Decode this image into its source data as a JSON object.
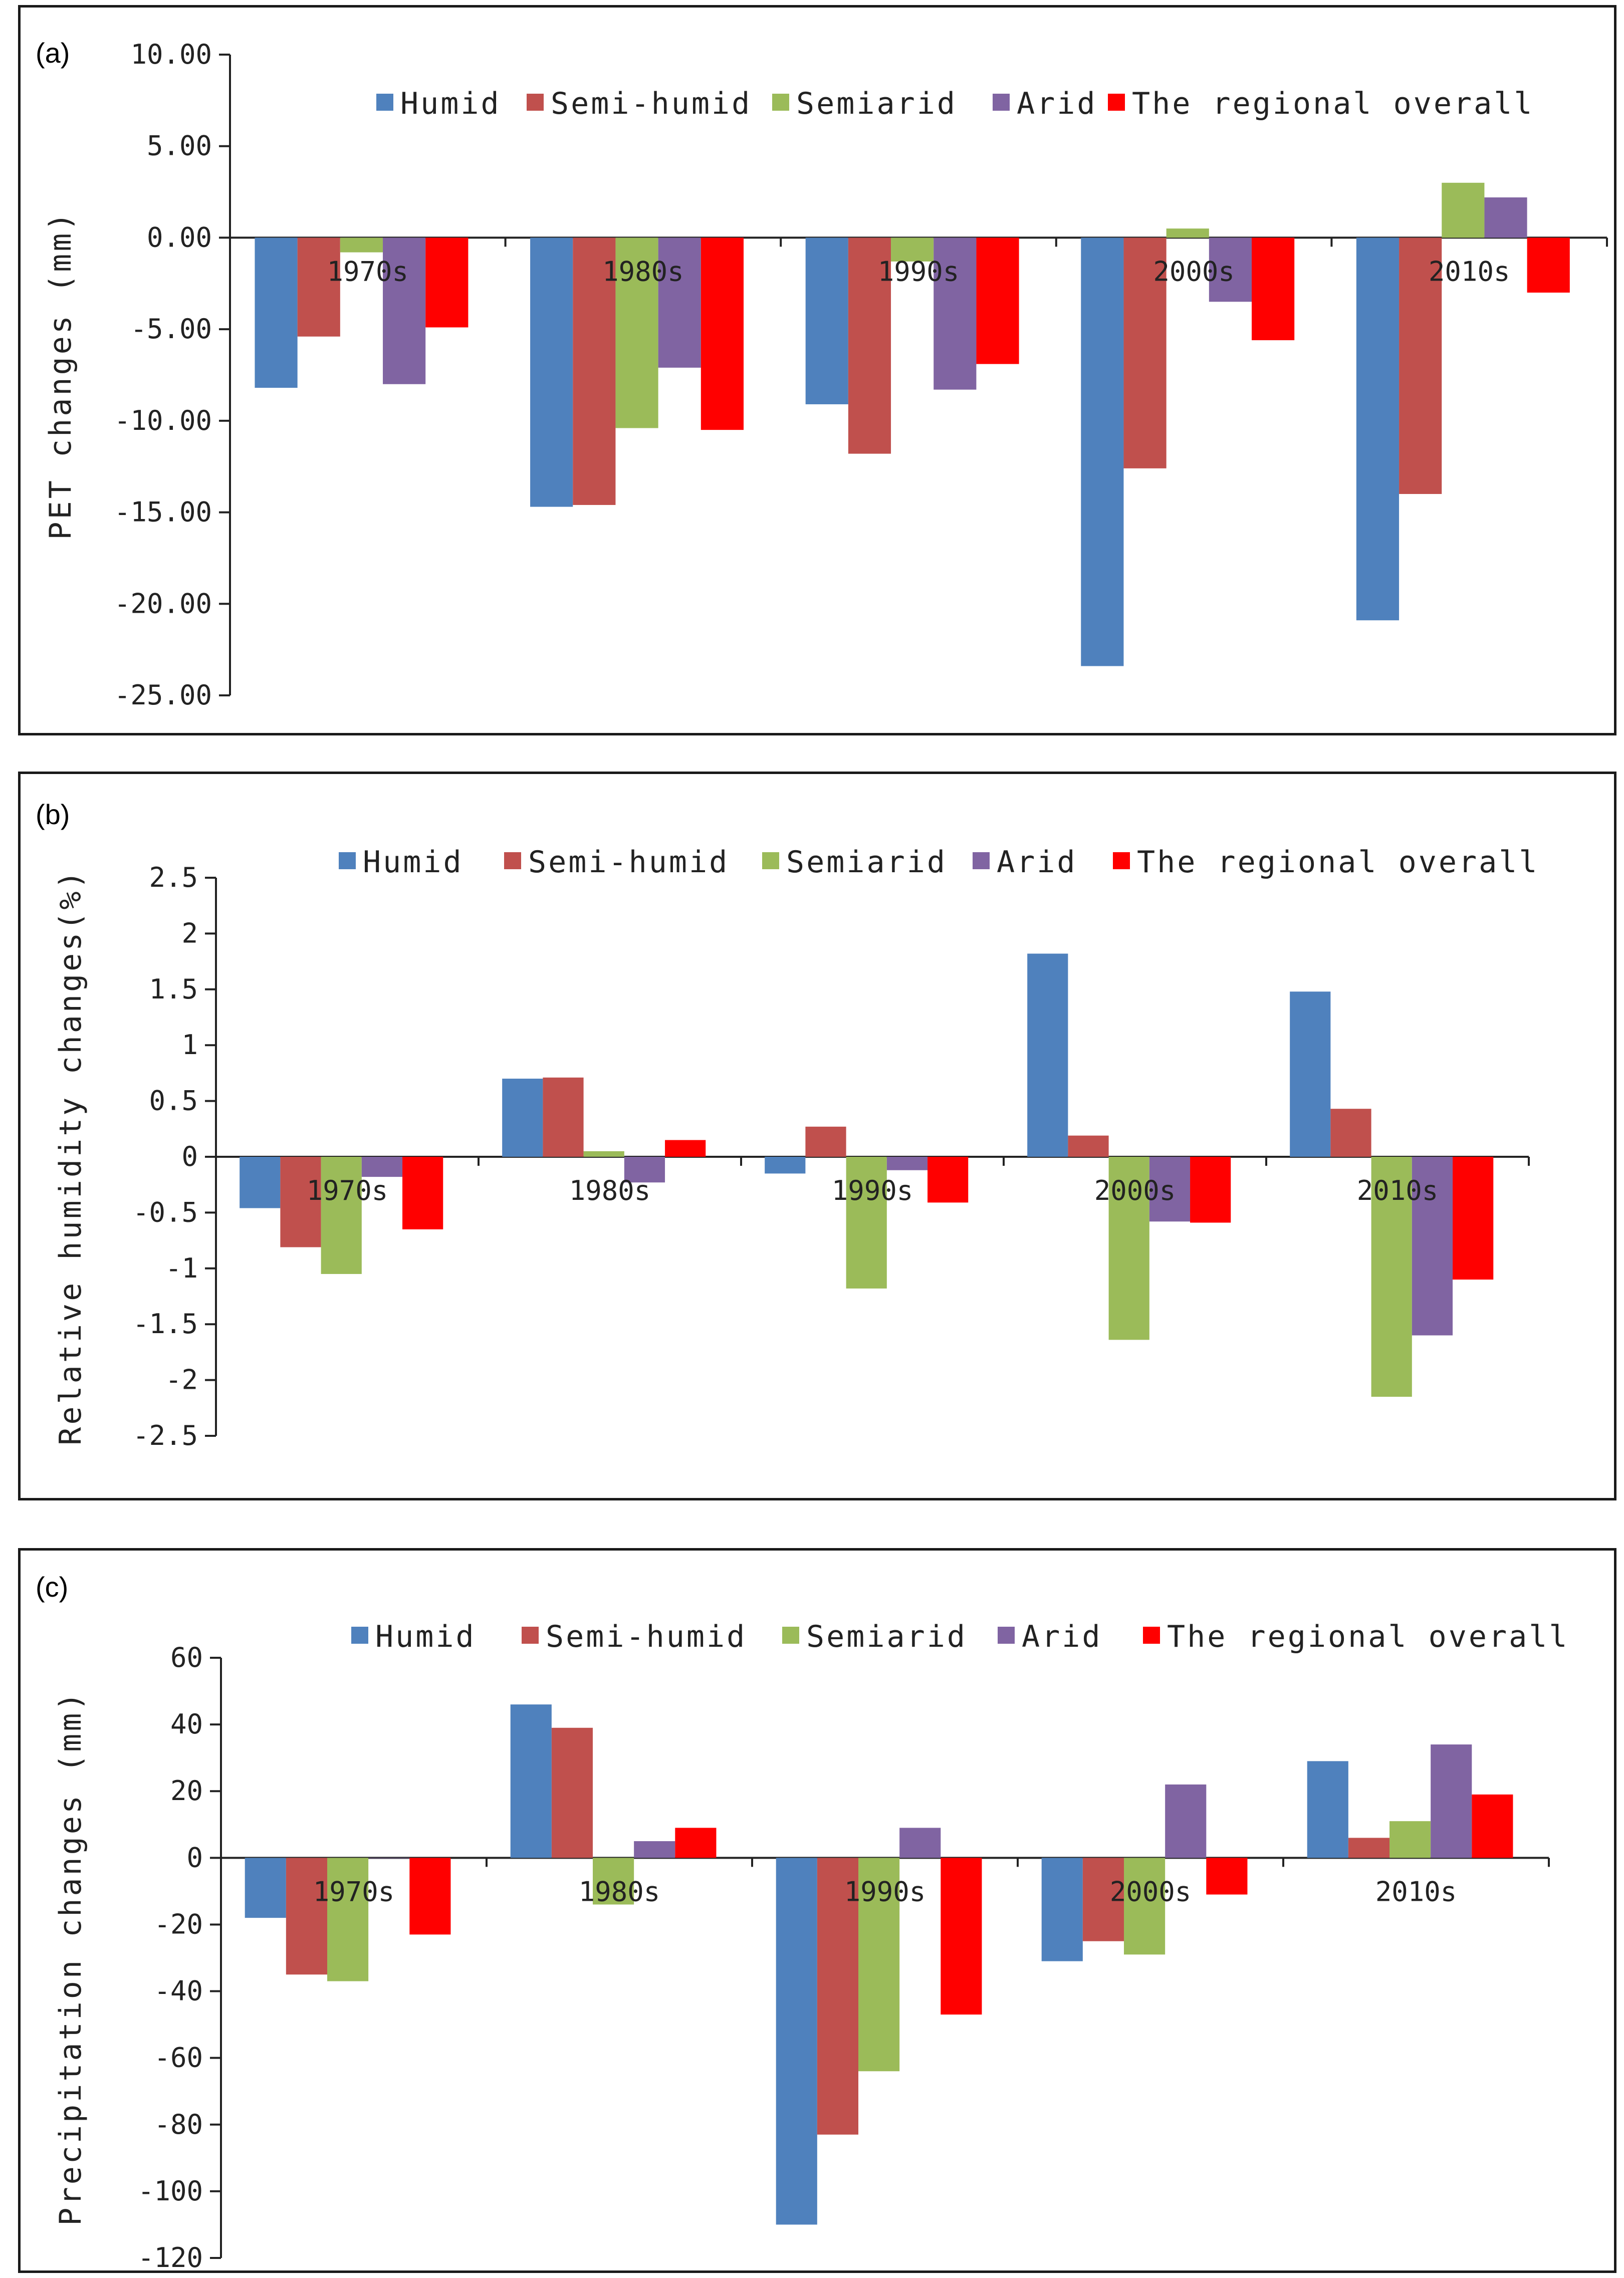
{
  "chart_data": [
    {
      "type": "bar",
      "panel_label": "(a)",
      "title": "",
      "xlabel": "",
      "ylabel": "PET  changes  (mm)",
      "ylim": [
        -25,
        10
      ],
      "yticks": [
        10,
        5,
        0,
        -5,
        -10,
        -15,
        -20,
        -25
      ],
      "ytick_labels": [
        "10.00",
        "5.00",
        "0.00",
        "-5.00",
        "-10.00",
        "-15.00",
        "-20.00",
        "-25.00"
      ],
      "categories": [
        "1970s",
        "1980s",
        "1990s",
        "2000s",
        "2010s"
      ],
      "legend_position": "top-right",
      "series": [
        {
          "name": "Humid",
          "color": "#4F81BD",
          "values": [
            -8.2,
            -14.7,
            -9.1,
            -23.4,
            -20.9
          ]
        },
        {
          "name": "Semi-humid",
          "color": "#C0504D",
          "values": [
            -5.4,
            -14.6,
            -11.8,
            -12.6,
            -14.0
          ]
        },
        {
          "name": "Semiarid",
          "color": "#9BBB59",
          "values": [
            -0.8,
            -10.4,
            -1.3,
            0.5,
            3.0
          ]
        },
        {
          "name": "Arid",
          "color": "#8064A2",
          "values": [
            -8.0,
            -7.1,
            -8.3,
            -3.5,
            2.2
          ]
        },
        {
          "name": "The regional overall",
          "color": "#FF0000",
          "values": [
            -4.9,
            -10.5,
            -6.9,
            -5.6,
            -3.0
          ]
        }
      ]
    },
    {
      "type": "bar",
      "panel_label": "(b)",
      "title": "",
      "xlabel": "",
      "ylabel": "Relative humidity changes(%)",
      "ylim": [
        -2.5,
        2.5
      ],
      "yticks": [
        2.5,
        2,
        1.5,
        1,
        0.5,
        0,
        -0.5,
        -1,
        -1.5,
        -2,
        -2.5
      ],
      "ytick_labels": [
        "2.5",
        "2",
        "1.5",
        "1",
        "0.5",
        "0",
        "-0.5",
        "-1",
        "-1.5",
        "-2",
        "-2.5"
      ],
      "categories": [
        "1970s",
        "1980s",
        "1990s",
        "2000s",
        "2010s"
      ],
      "legend_position": "top-right",
      "series": [
        {
          "name": "Humid",
          "color": "#4F81BD",
          "values": [
            -0.46,
            0.7,
            -0.15,
            1.82,
            1.48
          ]
        },
        {
          "name": "Semi-humid",
          "color": "#C0504D",
          "values": [
            -0.81,
            0.71,
            0.27,
            0.19,
            0.43
          ]
        },
        {
          "name": "Semiarid",
          "color": "#9BBB59",
          "values": [
            -1.05,
            0.05,
            -1.18,
            -1.64,
            -2.15
          ]
        },
        {
          "name": "Arid",
          "color": "#8064A2",
          "values": [
            -0.18,
            -0.23,
            -0.12,
            -0.58,
            -1.6
          ]
        },
        {
          "name": "The regional overall",
          "color": "#FF0000",
          "values": [
            -0.65,
            0.15,
            -0.41,
            -0.59,
            -1.1
          ]
        }
      ]
    },
    {
      "type": "bar",
      "panel_label": "(c)",
      "title": "",
      "xlabel": "",
      "ylabel": "Precipitation changes (mm)",
      "ylim": [
        -120,
        60
      ],
      "yticks": [
        60,
        40,
        20,
        0,
        -20,
        -40,
        -60,
        -80,
        -100,
        -120
      ],
      "ytick_labels": [
        "60",
        "40",
        "20",
        "0",
        "-20",
        "-40",
        "-60",
        "-80",
        "-100",
        "-120"
      ],
      "categories": [
        "1970s",
        "1980s",
        "1990s",
        "2000s",
        "2010s"
      ],
      "legend_position": "top-right",
      "series": [
        {
          "name": "Humid",
          "color": "#4F81BD",
          "values": [
            -18,
            46,
            -110,
            -31,
            29
          ]
        },
        {
          "name": "Semi-humid",
          "color": "#C0504D",
          "values": [
            -35,
            39,
            -83,
            -25,
            6
          ]
        },
        {
          "name": "Semiarid",
          "color": "#9BBB59",
          "values": [
            -37,
            -14,
            -64,
            -29,
            11
          ]
        },
        {
          "name": "Arid",
          "color": "#8064A2",
          "values": [
            0,
            5,
            9,
            22,
            34
          ]
        },
        {
          "name": "The regional overall",
          "color": "#FF0000",
          "values": [
            -23,
            9,
            -47,
            -11,
            19
          ]
        }
      ]
    }
  ]
}
